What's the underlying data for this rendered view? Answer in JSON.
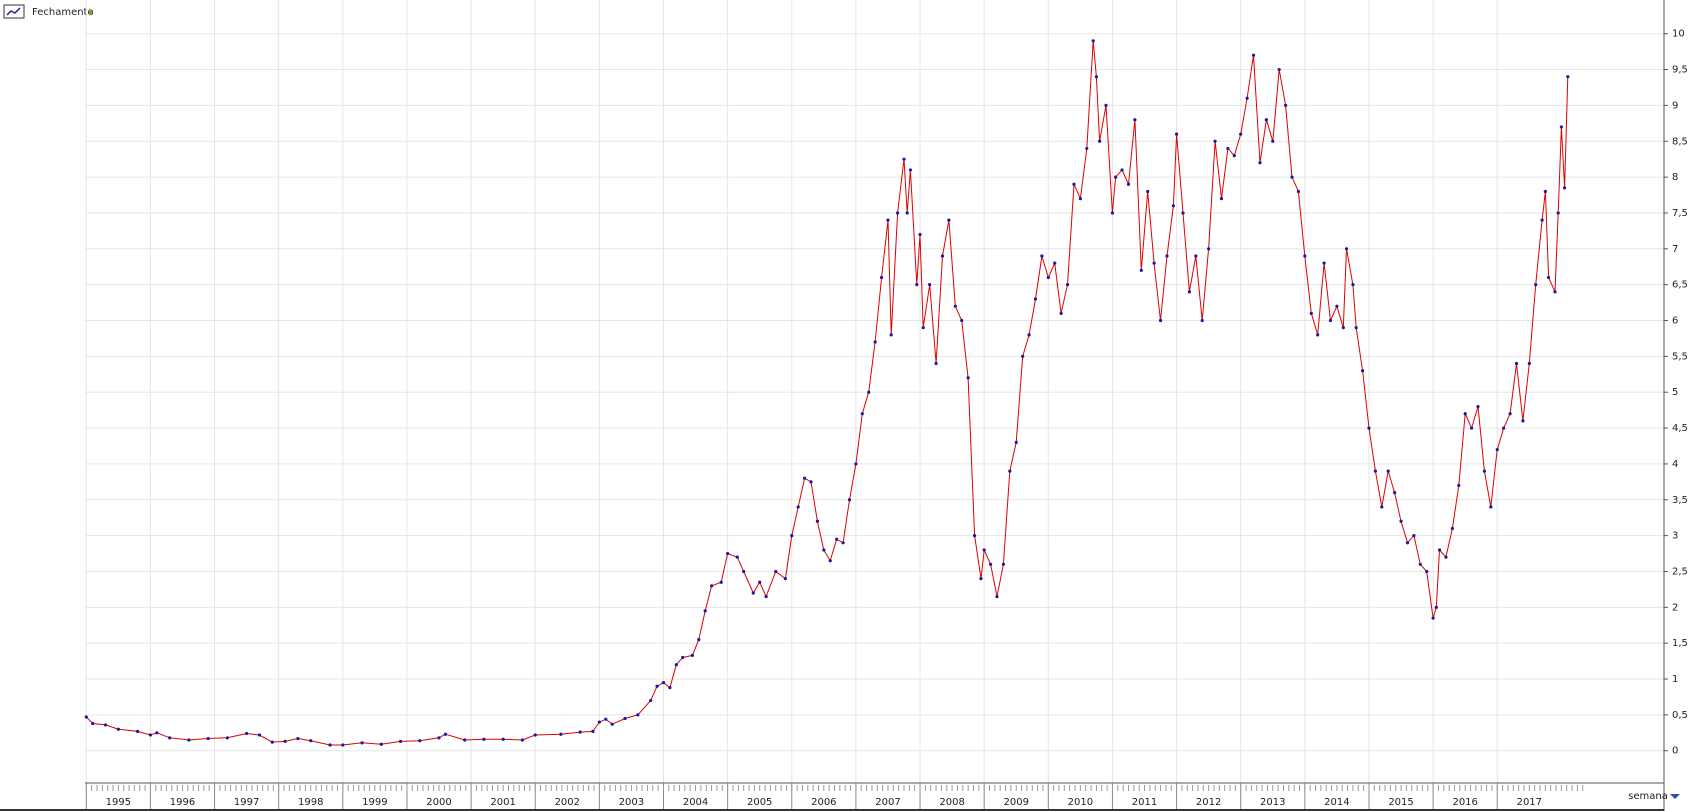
{
  "chart_data": {
    "type": "line",
    "legend_position": "top-left",
    "grid": true,
    "x_unit_label": "semana",
    "xlim": [
      1994.98,
      2019.6
    ],
    "xticks": [
      1995,
      1996,
      1997,
      1998,
      1999,
      2000,
      2001,
      2002,
      2003,
      2004,
      2005,
      2006,
      2007,
      2008,
      2009,
      2010,
      2011,
      2012,
      2013,
      2014,
      2015,
      2016,
      2017
    ],
    "ylim": [
      -0.45,
      10.47
    ],
    "yticks": [
      0,
      {
        "value": 0.5,
        "label": "0,5"
      },
      1,
      {
        "value": 1.5,
        "label": "1,5"
      },
      2,
      {
        "value": 2.5,
        "label": "2,5"
      },
      3,
      {
        "value": 3.5,
        "label": "3,5"
      },
      4,
      {
        "value": 4.5,
        "label": "4,5"
      },
      5,
      {
        "value": 5.5,
        "label": "5,5"
      },
      6,
      {
        "value": 6.5,
        "label": "6,5"
      },
      7,
      {
        "value": 7.5,
        "label": "7,5"
      },
      8,
      {
        "value": 8.5,
        "label": "8,5"
      },
      9,
      {
        "value": 9.5,
        "label": "9,5"
      },
      10
    ],
    "x": [
      1995.0,
      1995.1,
      1995.3,
      1995.5,
      1995.8,
      1996.0,
      1996.1,
      1996.3,
      1996.6,
      1996.9,
      1997.2,
      1997.5,
      1997.7,
      1997.9,
      1998.1,
      1998.3,
      1998.5,
      1998.8,
      1999.0,
      1999.3,
      1999.6,
      1999.9,
      2000.2,
      2000.5,
      2000.6,
      2000.9,
      2001.2,
      2001.5,
      2001.8,
      2002.0,
      2002.4,
      2002.7,
      2002.9,
      2003.0,
      2003.1,
      2003.2,
      2003.4,
      2003.6,
      2003.8,
      2003.9,
      2004.0,
      2004.1,
      2004.2,
      2004.3,
      2004.45,
      2004.55,
      2004.65,
      2004.75,
      2004.9,
      2005.0,
      2005.15,
      2005.25,
      2005.4,
      2005.5,
      2005.6,
      2005.75,
      2005.9,
      2006.0,
      2006.1,
      2006.2,
      2006.3,
      2006.4,
      2006.5,
      2006.6,
      2006.7,
      2006.8,
      2006.9,
      2007.0,
      2007.1,
      2007.2,
      2007.3,
      2007.4,
      2007.5,
      2007.55,
      2007.65,
      2007.75,
      2007.8,
      2007.85,
      2007.95,
      2008.0,
      2008.05,
      2008.15,
      2008.25,
      2008.35,
      2008.45,
      2008.55,
      2008.65,
      2008.75,
      2008.85,
      2008.95,
      2009.0,
      2009.1,
      2009.2,
      2009.3,
      2009.4,
      2009.5,
      2009.6,
      2009.7,
      2009.8,
      2009.9,
      2010.0,
      2010.1,
      2010.2,
      2010.3,
      2010.4,
      2010.5,
      2010.6,
      2010.7,
      2010.75,
      2010.8,
      2010.9,
      2011.0,
      2011.05,
      2011.15,
      2011.25,
      2011.35,
      2011.45,
      2011.55,
      2011.65,
      2011.75,
      2011.85,
      2011.95,
      2012.0,
      2012.1,
      2012.2,
      2012.3,
      2012.4,
      2012.5,
      2012.6,
      2012.7,
      2012.8,
      2012.9,
      2013.0,
      2013.1,
      2013.2,
      2013.3,
      2013.4,
      2013.5,
      2013.6,
      2013.7,
      2013.8,
      2013.9,
      2014.0,
      2014.1,
      2014.2,
      2014.3,
      2014.4,
      2014.5,
      2014.6,
      2014.65,
      2014.75,
      2014.8,
      2014.9,
      2015.0,
      2015.1,
      2015.2,
      2015.3,
      2015.4,
      2015.5,
      2015.6,
      2015.7,
      2015.8,
      2015.9,
      2016.0,
      2016.05,
      2016.1,
      2016.2,
      2016.3,
      2016.4,
      2016.5,
      2016.6,
      2016.7,
      2016.8,
      2016.9,
      2017.0,
      2017.1,
      2017.2,
      2017.3,
      2017.4,
      2017.5,
      2017.6,
      2017.7,
      2017.75,
      2017.8,
      2017.9,
      2017.95,
      2018.0,
      2018.05,
      2018.1
    ],
    "series": [
      {
        "name": "Fechamento",
        "color": "#e00000",
        "marker_color": "#1a1aa0",
        "values": [
          0.47,
          0.38,
          0.36,
          0.3,
          0.27,
          0.22,
          0.25,
          0.18,
          0.15,
          0.17,
          0.18,
          0.24,
          0.22,
          0.12,
          0.13,
          0.17,
          0.14,
          0.08,
          0.08,
          0.11,
          0.09,
          0.13,
          0.14,
          0.18,
          0.23,
          0.15,
          0.16,
          0.16,
          0.15,
          0.22,
          0.23,
          0.26,
          0.27,
          0.4,
          0.44,
          0.37,
          0.45,
          0.5,
          0.7,
          0.9,
          0.95,
          0.88,
          1.2,
          1.3,
          1.33,
          1.55,
          1.95,
          2.3,
          2.35,
          2.75,
          2.7,
          2.5,
          2.2,
          2.35,
          2.15,
          2.5,
          2.4,
          3.0,
          3.4,
          3.8,
          3.75,
          3.2,
          2.8,
          2.65,
          2.95,
          2.9,
          3.5,
          4.0,
          4.7,
          5.0,
          5.7,
          6.6,
          7.4,
          5.8,
          7.5,
          8.25,
          7.5,
          8.1,
          6.5,
          7.2,
          5.9,
          6.5,
          5.4,
          6.9,
          7.4,
          6.2,
          6.0,
          5.2,
          3.0,
          2.4,
          2.8,
          2.6,
          2.15,
          2.6,
          3.9,
          4.3,
          5.5,
          5.8,
          6.3,
          6.9,
          6.6,
          6.8,
          6.1,
          6.5,
          7.9,
          7.7,
          8.4,
          9.9,
          9.4,
          8.5,
          9.0,
          7.5,
          8.0,
          8.1,
          7.9,
          8.8,
          6.7,
          7.8,
          6.8,
          6.0,
          6.9,
          7.6,
          8.6,
          7.5,
          6.4,
          6.9,
          6.0,
          7.0,
          8.5,
          7.7,
          8.4,
          8.3,
          8.6,
          9.1,
          9.7,
          8.2,
          8.8,
          8.5,
          9.5,
          9.0,
          8.0,
          7.8,
          6.9,
          6.1,
          5.8,
          6.8,
          6.0,
          6.2,
          5.9,
          7.0,
          6.5,
          5.9,
          5.3,
          4.5,
          3.9,
          3.4,
          3.9,
          3.6,
          3.2,
          2.9,
          3.0,
          2.6,
          2.5,
          1.85,
          2.0,
          2.8,
          2.7,
          3.1,
          3.7,
          4.7,
          4.5,
          4.8,
          3.9,
          3.4,
          4.2,
          4.5,
          4.7,
          5.4,
          4.6,
          5.4,
          6.5,
          7.4,
          7.8,
          6.6,
          6.4,
          7.5,
          8.7,
          7.85,
          9.4
        ]
      }
    ]
  }
}
